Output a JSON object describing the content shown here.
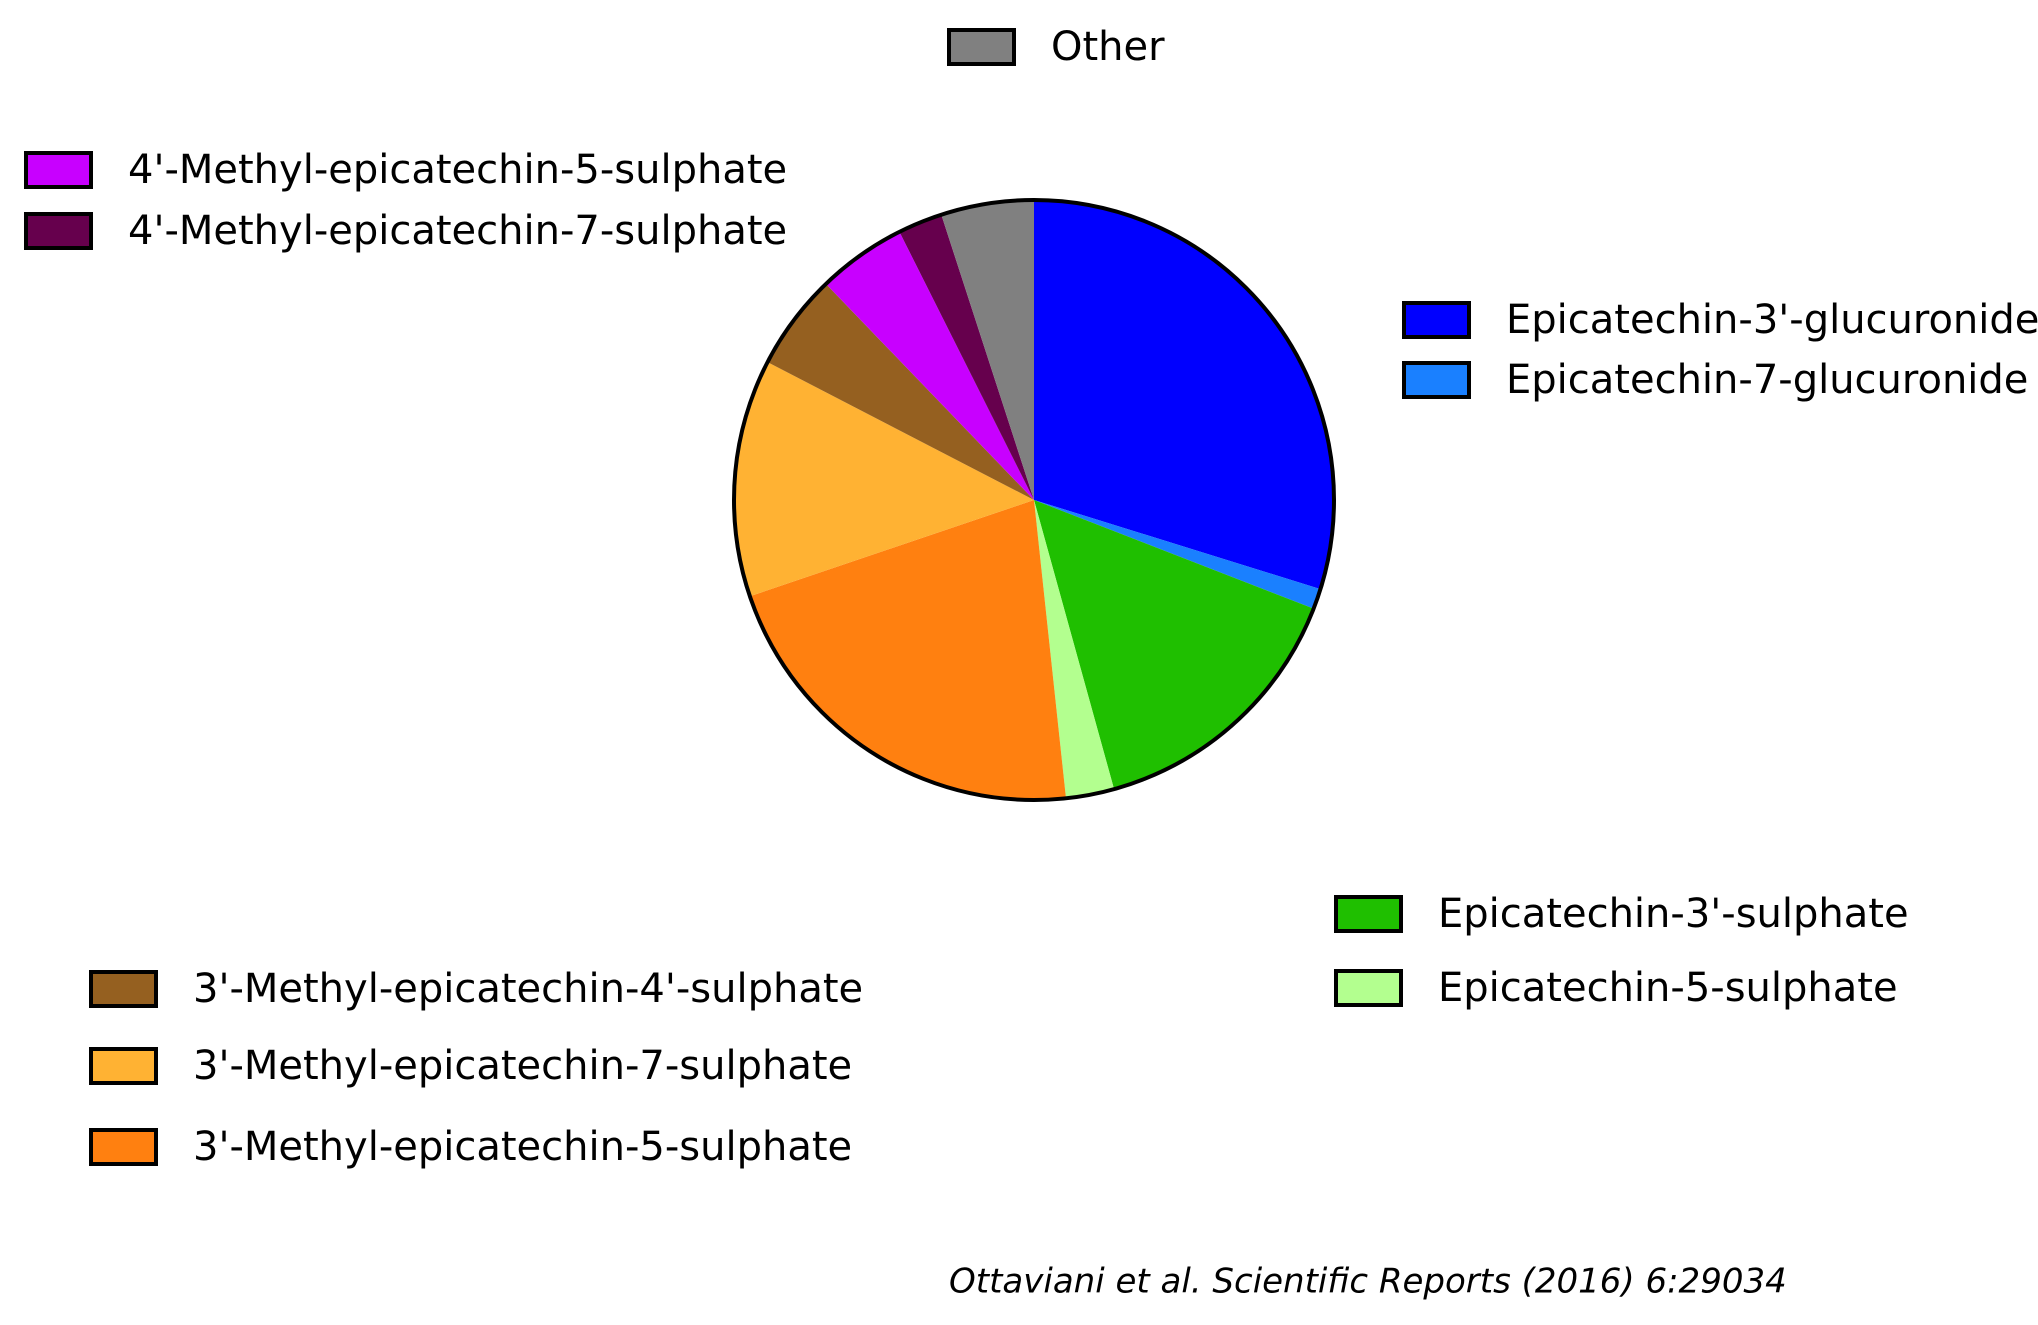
{
  "chart_data": {
    "type": "pie",
    "categories": [
      "Epicatechin-3'-glucuronide",
      "Epicatechin-7-glucuronide",
      "Epicatechin-3'-sulphate",
      "Epicatechin-5-sulphate",
      "3'-Methyl-epicatechin-5-sulphate",
      "3'-Methyl-epicatechin-7-sulphate",
      "3'-Methyl-epicatechin-4'-sulphate",
      "4'-Methyl-epicatechin-5-sulphate",
      "4'-Methyl-epicatechin-7-sulphate",
      "Other"
    ],
    "values": [
      29.8,
      1.1,
      14.8,
      2.6,
      21.5,
      12.8,
      5.2,
      4.8,
      2.4,
      5.0
    ],
    "colors": [
      "#0000ff",
      "#1a80ff",
      "#1fbf00",
      "#b3ff8f",
      "#ff8010",
      "#ffb233",
      "#956020",
      "#c800ff",
      "#66004d",
      "#808080"
    ],
    "source": "Ottaviani et al. Scientific Reports (2016) 6:29034"
  }
}
